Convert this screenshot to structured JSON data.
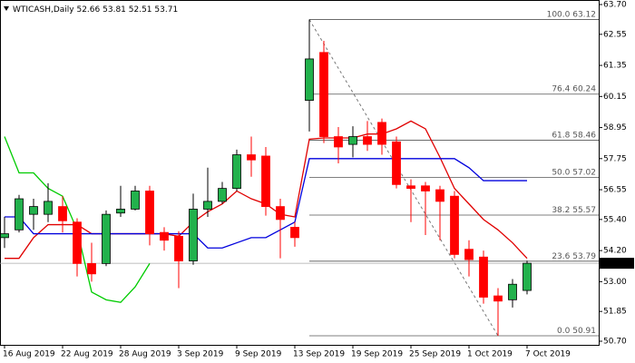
{
  "chart_data": {
    "type": "candlestick",
    "title": "WTICASH,Daily",
    "categories": [
      "16 Aug 2019",
      null,
      null,
      null,
      "22 Aug 2019",
      null,
      null,
      null,
      "28 Aug 2019",
      null,
      null,
      null,
      "3 Sep 2019",
      null,
      null,
      null,
      "9 Sep 2019",
      null,
      null,
      null,
      "13 Sep 2019",
      null,
      null,
      null,
      "19 Sep 2019",
      null,
      null,
      null,
      "25 Sep 2019",
      null,
      null,
      null,
      "1 Oct 2019",
      null,
      null,
      null,
      "7 Oct 2019"
    ],
    "open": [
      54.7,
      55.0,
      55.6,
      55.6,
      55.9,
      55.3,
      53.7,
      53.7,
      55.65,
      55.8,
      56.5,
      54.9,
      54.75,
      53.8,
      55.8,
      56.1,
      56.6,
      57.9,
      57.85,
      55.9,
      55.1,
      60.0,
      61.85,
      58.6,
      58.3,
      58.6,
      59.15,
      58.4,
      56.7,
      56.7,
      56.55,
      56.3,
      54.25,
      53.95,
      52.45,
      52.3,
      52.66
    ],
    "high": [
      55.5,
      56.35,
      56.2,
      56.8,
      56.3,
      55.45,
      54.5,
      55.75,
      56.7,
      56.7,
      56.7,
      55.1,
      54.95,
      56.4,
      57.4,
      56.85,
      58.1,
      58.6,
      58.2,
      56.2,
      55.3,
      63.12,
      62.3,
      58.97,
      59.0,
      59.2,
      59.3,
      58.6,
      56.95,
      56.85,
      56.7,
      56.5,
      54.6,
      54.2,
      52.75,
      53.1,
      53.81
    ],
    "low": [
      54.3,
      54.9,
      55.0,
      55.3,
      54.9,
      53.2,
      53.0,
      53.6,
      55.5,
      55.75,
      54.4,
      54.2,
      52.75,
      53.65,
      55.5,
      56.0,
      56.5,
      57.05,
      55.55,
      53.9,
      54.35,
      58.8,
      58.35,
      57.57,
      57.8,
      58.05,
      57.9,
      56.6,
      55.3,
      54.8,
      54.6,
      53.9,
      53.2,
      52.15,
      50.91,
      52.0,
      52.51
    ],
    "close": [
      54.85,
      56.2,
      55.9,
      56.1,
      55.35,
      53.7,
      53.3,
      55.6,
      55.8,
      56.5,
      54.85,
      54.6,
      53.8,
      55.8,
      56.1,
      56.6,
      57.9,
      57.7,
      55.9,
      55.4,
      54.7,
      61.6,
      58.6,
      58.2,
      58.6,
      58.3,
      58.3,
      56.75,
      56.6,
      56.5,
      56.1,
      54.05,
      53.85,
      52.4,
      52.25,
      52.9,
      53.71
    ],
    "up_color": "#22b14c",
    "down_color": "#ff0000",
    "lines": [
      {
        "color": "#e00000",
        "values": [
          53.9,
          53.9,
          54.7,
          55.2,
          55.2,
          55.2,
          54.85,
          54.85,
          54.85,
          54.85,
          54.85,
          54.85,
          54.75,
          55.3,
          55.7,
          56.0,
          56.5,
          56.2,
          56.0,
          55.6,
          55.5,
          58.5,
          58.55,
          58.55,
          58.55,
          58.7,
          58.7,
          58.9,
          59.2,
          58.9,
          57.8,
          56.6,
          56.0,
          55.4,
          55.0,
          54.5,
          53.9
        ]
      },
      {
        "color": "#0000dd",
        "values": [
          55.5,
          55.5,
          54.85,
          54.85,
          54.85,
          54.85,
          54.85,
          54.85,
          54.85,
          54.85,
          54.85,
          54.85,
          54.85,
          54.85,
          54.3,
          54.3,
          54.5,
          54.7,
          54.7,
          55.0,
          55.3,
          57.75,
          57.75,
          57.75,
          57.75,
          57.75,
          57.75,
          57.75,
          57.75,
          57.75,
          57.75,
          57.75,
          57.4,
          56.9,
          56.9,
          56.9,
          56.9
        ]
      },
      {
        "color": "#00cc00",
        "values": [
          58.6,
          57.2,
          57.2,
          56.6,
          56.3,
          55.0,
          52.6,
          52.3,
          52.2,
          52.8,
          53.7,
          null,
          null,
          null,
          null,
          null,
          null,
          null,
          null,
          null,
          null,
          null,
          null,
          null,
          null,
          null,
          null,
          null,
          null,
          null,
          null,
          null,
          null,
          null,
          null,
          null,
          null
        ]
      }
    ],
    "fibonacci": [
      {
        "ratio": "100.0",
        "value": 63.12
      },
      {
        "ratio": "76.4",
        "value": 60.24
      },
      {
        "ratio": "61.8",
        "value": 58.46
      },
      {
        "ratio": "50.0",
        "value": 57.02
      },
      {
        "ratio": "38.2",
        "value": 55.57
      },
      {
        "ratio": "23.6",
        "value": 53.79
      },
      {
        "ratio": "0.0",
        "value": 50.91
      }
    ],
    "ylim": [
      50.7,
      63.7
    ],
    "yticks": [
      {
        "value": 63.7,
        "label": "63.70"
      },
      {
        "value": 62.55,
        "label": "62.55"
      },
      {
        "value": 61.35,
        "label": "61.35"
      },
      {
        "value": 60.15,
        "label": "60.15"
      },
      {
        "value": 58.95,
        "label": "58.95"
      },
      {
        "value": 57.75,
        "label": "57.75"
      },
      {
        "value": 56.55,
        "label": "56.55"
      },
      {
        "value": 55.4,
        "label": "55.40"
      },
      {
        "value": 54.2,
        "label": "54.20"
      },
      {
        "value": 53.0,
        "label": "53.00"
      },
      {
        "value": 51.85,
        "label": "51.85"
      },
      {
        "value": 50.7,
        "label": "50.70"
      }
    ]
  }
}
